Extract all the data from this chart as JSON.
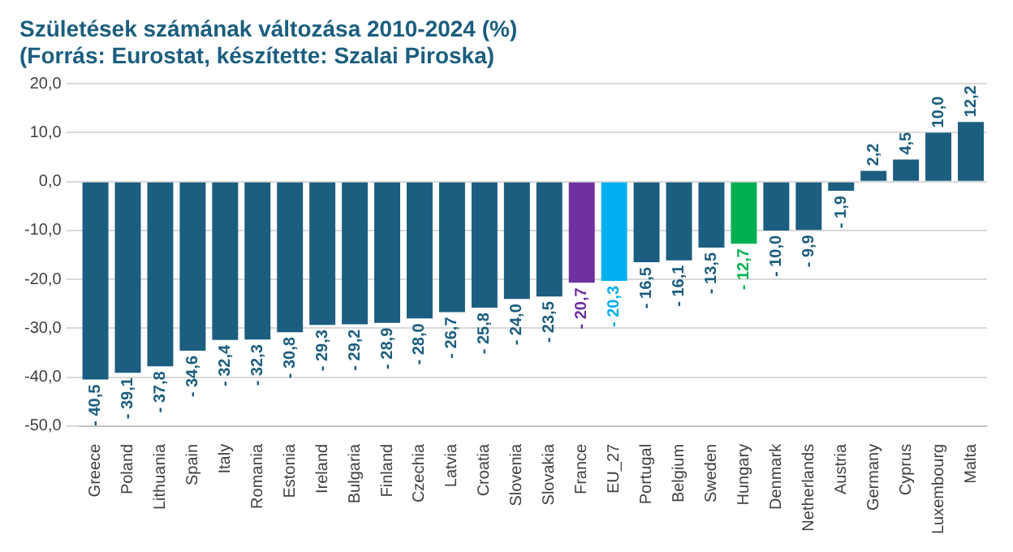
{
  "chart_data": {
    "type": "bar",
    "title": "Születések számának változása 2010-2024 (%)",
    "subtitle": "(Forrás: Eurostat, készítette: Szalai Piroska)",
    "categories": [
      "Greece",
      "Poland",
      "Lithuania",
      "Spain",
      "Italy",
      "Romania",
      "Estonia",
      "Ireland",
      "Bulgaria",
      "Finland",
      "Czechia",
      "Latvia",
      "Croatia",
      "Slovenia",
      "Slovakia",
      "France",
      "EU_27",
      "Portugal",
      "Belgium",
      "Sweden",
      "Hungary",
      "Denmark",
      "Netherlands",
      "Austria",
      "Germany",
      "Cyprus",
      "Luxembourg",
      "Malta"
    ],
    "values": [
      -40.5,
      -39.1,
      -37.8,
      -34.6,
      -32.4,
      -32.3,
      -30.8,
      -29.3,
      -29.2,
      -28.9,
      -28.0,
      -26.7,
      -25.8,
      -24.0,
      -23.5,
      -20.7,
      -20.3,
      -16.5,
      -16.1,
      -13.5,
      -12.7,
      -10.0,
      -9.9,
      -1.9,
      2.2,
      4.5,
      10.0,
      12.2
    ],
    "value_labels": [
      "- 40,5",
      "- 39,1",
      "- 37,8",
      "- 34,6",
      "- 32,4",
      "- 32,3",
      "- 30,8",
      "- 29,3",
      "- 29,2",
      "- 28,9",
      "- 28,0",
      "- 26,7",
      "- 25,8",
      "- 24,0",
      "- 23,5",
      "- 20,7",
      "- 20,3",
      "- 16,5",
      "- 16,1",
      "- 13,5",
      "- 12,7",
      "- 10,0",
      "- 9,9",
      "- 1,9",
      "2,2",
      "4,5",
      "10,0",
      "12,2"
    ],
    "colors": [
      "#1b5e7f",
      "#1b5e7f",
      "#1b5e7f",
      "#1b5e7f",
      "#1b5e7f",
      "#1b5e7f",
      "#1b5e7f",
      "#1b5e7f",
      "#1b5e7f",
      "#1b5e7f",
      "#1b5e7f",
      "#1b5e7f",
      "#1b5e7f",
      "#1b5e7f",
      "#1b5e7f",
      "#7030a0",
      "#00b0f0",
      "#1b5e7f",
      "#1b5e7f",
      "#1b5e7f",
      "#00b050",
      "#1b5e7f",
      "#1b5e7f",
      "#1b5e7f",
      "#1b5e7f",
      "#1b5e7f",
      "#1b5e7f",
      "#1b5e7f"
    ],
    "ylim": [
      -50,
      20
    ],
    "yticks": [
      {
        "value": -50,
        "label": "-50,0"
      },
      {
        "value": -40,
        "label": "-40,0"
      },
      {
        "value": -30,
        "label": "-30,0"
      },
      {
        "value": -20,
        "label": "-20,0"
      },
      {
        "value": -10,
        "label": "-10,0"
      },
      {
        "value": 0,
        "label": "0,0"
      },
      {
        "value": 10,
        "label": "10,0"
      },
      {
        "value": 20,
        "label": "20,0"
      }
    ],
    "grid": "y",
    "legend": false
  }
}
